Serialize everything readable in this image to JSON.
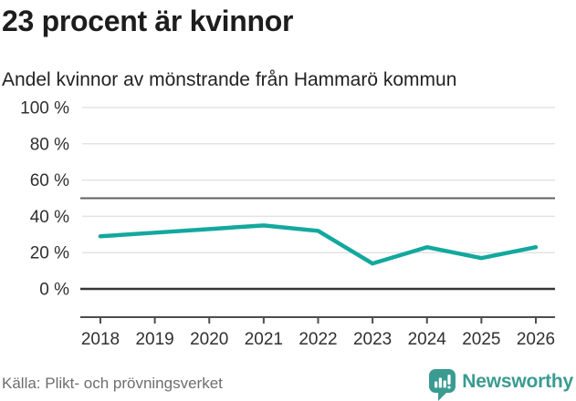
{
  "header": {
    "title": "23 procent är kvinnor",
    "subtitle": "Andel kvinnor av mönstrande från Hammarö kommun"
  },
  "chart_data": {
    "type": "line",
    "title": "23 procent är kvinnor",
    "subtitle": "Andel kvinnor av mönstrande från Hammarö kommun",
    "categories": [
      "2018",
      "2019",
      "2020",
      "2021",
      "2022",
      "2023",
      "2024",
      "2025",
      "2026"
    ],
    "series": [
      {
        "name": "Andel kvinnor av mönstrande",
        "values": [
          29,
          31,
          33,
          35,
          32,
          14,
          23,
          17,
          23
        ]
      }
    ],
    "unit": "%",
    "ylim": [
      0,
      100
    ],
    "yticks": [
      0,
      20,
      40,
      60,
      80,
      100
    ],
    "ytick_labels": [
      "0 %",
      "20 %",
      "40 %",
      "60 %",
      "80 %",
      "100 %"
    ],
    "reference_line_y": 50,
    "grid": true,
    "legend": "none",
    "line_color": "#13A89E"
  },
  "footer": {
    "source": "Källa: Plikt- och prövningsverket",
    "brand": "Newsworthy"
  },
  "icons": {
    "brand_icon": "newsworthy-speech-bubble-barchart-icon"
  },
  "colors": {
    "accent_teal": "#13A89E",
    "brand_teal": "#3A9B91",
    "text_dark": "#1E1E1E",
    "tick_text": "#303030",
    "grid_light": "#E3E3E3",
    "grid_mid": "#5F5F5F",
    "grid_zero": "#363636",
    "axis": "#4D4D4D",
    "source_text": "#6E6E6E"
  }
}
